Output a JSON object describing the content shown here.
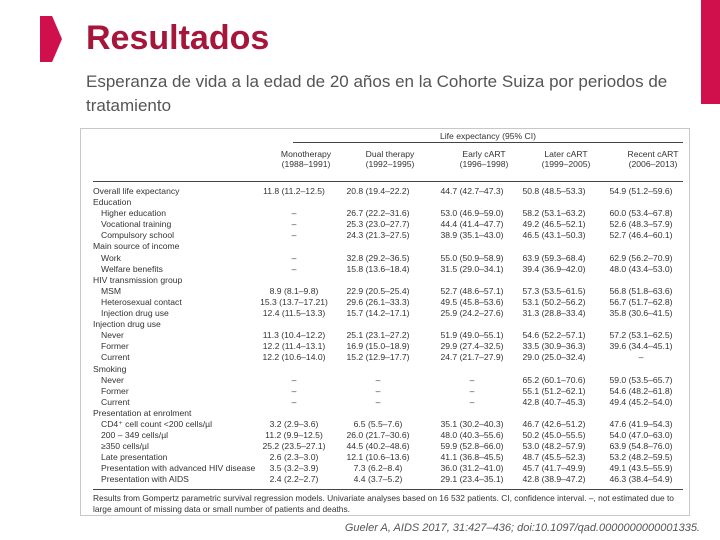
{
  "slide": {
    "title": "Resultados",
    "subtitle": "Esperanza de vida a la edad de 20 años en la Cohorte Suiza por  periodos de tratamiento",
    "citation": "Gueler A, AIDS 2017, 31:427–436; doi:10.1097/qad.0000000000001335.",
    "accent_color": "#d0104c",
    "title_color": "#a6163a"
  },
  "table": {
    "group_header": "Life expectancy (95% CI)",
    "columns": [
      {
        "name": "Monotherapy",
        "years": "(1988–1991)"
      },
      {
        "name": "Dual therapy",
        "years": "(1992–1995)"
      },
      {
        "name": "Early cART",
        "years": "(1996–1998)"
      },
      {
        "name": "Later cART",
        "years": "(1999–2005)"
      },
      {
        "name": "Recent cART",
        "years": "(2006–2013)"
      }
    ],
    "rows": [
      {
        "label": "Overall life expectancy",
        "indent": false,
        "values": [
          "11.8 (11.2–12.5)",
          "20.8 (19.4–22.2)",
          "44.7 (42.7–47.3)",
          "50.8 (48.5–53.3)",
          "54.9 (51.2–59.6)"
        ]
      },
      {
        "label": "Education",
        "indent": false,
        "values": [
          "",
          "",
          "",
          "",
          ""
        ]
      },
      {
        "label": "Higher education",
        "indent": true,
        "values": [
          "–",
          "26.7 (22.2–31.6)",
          "53.0 (46.9–59.0)",
          "58.2 (53.1–63.2)",
          "60.0 (53.4–67.8)"
        ]
      },
      {
        "label": "Vocational training",
        "indent": true,
        "values": [
          "–",
          "25.3 (23.0–27.7)",
          "44.4 (41.4–47.7)",
          "49.2 (46.5–52.1)",
          "52.6 (48.3–57.9)"
        ]
      },
      {
        "label": "Compulsory school",
        "indent": true,
        "values": [
          "–",
          "24.3 (21.3–27.5)",
          "38.9 (35.1–43.0)",
          "46.5 (43.1–50.3)",
          "52.7 (46.4–60.1)"
        ]
      },
      {
        "label": "Main source of income",
        "indent": false,
        "values": [
          "",
          "",
          "",
          "",
          ""
        ]
      },
      {
        "label": "Work",
        "indent": true,
        "values": [
          "–",
          "32.8 (29.2–36.5)",
          "55.0 (50.9–58.9)",
          "63.9 (59.3–68.4)",
          "62.9 (56.2–70.9)"
        ]
      },
      {
        "label": "Welfare benefits",
        "indent": true,
        "values": [
          "–",
          "15.8 (13.6–18.4)",
          "31.5 (29.0–34.1)",
          "39.4 (36.9–42.0)",
          "48.0 (43.4–53.0)"
        ]
      },
      {
        "label": "HIV transmission group",
        "indent": false,
        "values": [
          "",
          "",
          "",
          "",
          ""
        ]
      },
      {
        "label": "MSM",
        "indent": true,
        "values": [
          "8.9 (8.1–9.8)",
          "22.9 (20.5–25.4)",
          "52.7 (48.6–57.1)",
          "57.3 (53.5–61.5)",
          "56.8 (51.8–63.6)"
        ]
      },
      {
        "label": "Heterosexual contact",
        "indent": true,
        "values": [
          "15.3 (13.7–17.21)",
          "29.6 (26.1–33.3)",
          "49.5 (45.8–53.6)",
          "53.1 (50.2–56.2)",
          "56.7 (51.7–62.8)"
        ]
      },
      {
        "label": "Injection drug use",
        "indent": true,
        "values": [
          "12.4 (11.5–13.3)",
          "15.7 (14.2–17.1)",
          "25.9 (24.2–27.6)",
          "31.3 (28.8–33.4)",
          "35.8 (30.6–41.5)"
        ]
      },
      {
        "label": "Injection drug use",
        "indent": false,
        "values": [
          "",
          "",
          "",
          "",
          ""
        ]
      },
      {
        "label": "Never",
        "indent": true,
        "values": [
          "11.3 (10.4–12.2)",
          "25.1 (23.1–27.2)",
          "51.9 (49.0–55.1)",
          "54.6 (52.2–57.1)",
          "57.2 (53.1–62.5)"
        ]
      },
      {
        "label": "Former",
        "indent": true,
        "values": [
          "12.2 (11.4–13.1)",
          "16.9 (15.0–18.9)",
          "29.9 (27.4–32.5)",
          "33.5 (30.9–36.3)",
          "39.6 (34.4–45.1)"
        ]
      },
      {
        "label": "Current",
        "indent": true,
        "values": [
          "12.2 (10.6–14.0)",
          "15.2 (12.9–17.7)",
          "24.7 (21.7–27.9)",
          "29.0 (25.0–32.4)",
          "–"
        ]
      },
      {
        "label": "Smoking",
        "indent": false,
        "values": [
          "",
          "",
          "",
          "",
          ""
        ]
      },
      {
        "label": "Never",
        "indent": true,
        "values": [
          "–",
          "–",
          "–",
          "65.2 (60.1–70.6)",
          "59.0 (53.5–65.7)"
        ]
      },
      {
        "label": "Former",
        "indent": true,
        "values": [
          "–",
          "–",
          "–",
          "55.1 (51.2–62.1)",
          "54.6 (48.2–61.8)"
        ]
      },
      {
        "label": "Current",
        "indent": true,
        "values": [
          "–",
          "–",
          "–",
          "42.8 (40.7–45.3)",
          "49.4 (45.2–54.0)"
        ]
      },
      {
        "label": "Presentation at enrolment",
        "indent": false,
        "values": [
          "",
          "",
          "",
          "",
          ""
        ]
      },
      {
        "label": "CD4⁺ cell count <200 cells/µl",
        "indent": true,
        "values": [
          "3.2 (2.9–3.6)",
          "6.5 (5.5–7.6)",
          "35.1 (30.2–40.3)",
          "46.7 (42.6–51.2)",
          "47.6 (41.9–54.3)"
        ]
      },
      {
        "label": "200 – 349 cells/µl",
        "indent": true,
        "values": [
          "11.2 (9.9–12.5)",
          "26.0 (21.7–30.6)",
          "48.0 (40.3–55.6)",
          "50.2 (45.0–55.5)",
          "54.0 (47.0–63.0)"
        ]
      },
      {
        "label": "≥350 cells/µl",
        "indent": true,
        "values": [
          "25.2 (23.5–27.1)",
          "44.5 (40.2–48.6)",
          "59.9 (52.8–66.0)",
          "53.0 (48.2–57.9)",
          "63.9 (54.8–76.0)"
        ]
      },
      {
        "label": "Late presentation",
        "indent": true,
        "values": [
          "2.6 (2.3–3.0)",
          "12.1 (10.6–13.6)",
          "41.1 (36.8–45.5)",
          "48.7 (45.5–52.3)",
          "53.2 (48.2–59.5)"
        ]
      },
      {
        "label": "Presentation with advanced HIV disease",
        "indent": true,
        "values": [
          "3.5 (3.2–3.9)",
          "7.3 (6.2–8.4)",
          "36.0 (31.2–41.0)",
          "45.7 (41.7–49.9)",
          "49.1 (43.5–55.9)"
        ]
      },
      {
        "label": "Presentation with AIDS",
        "indent": true,
        "values": [
          "2.4 (2.2–2.7)",
          "4.4 (3.7–5.2)",
          "29.1 (23.4–35.1)",
          "42.8 (38.9–47.2)",
          "46.3 (38.4–54.9)"
        ]
      }
    ],
    "footnote": "Results from Gompertz parametric survival regression models. Univariate analyses based on 16 532 patients. CI, confidence interval. –, not estimated due to large amount of missing data or small number of patients and deaths."
  }
}
